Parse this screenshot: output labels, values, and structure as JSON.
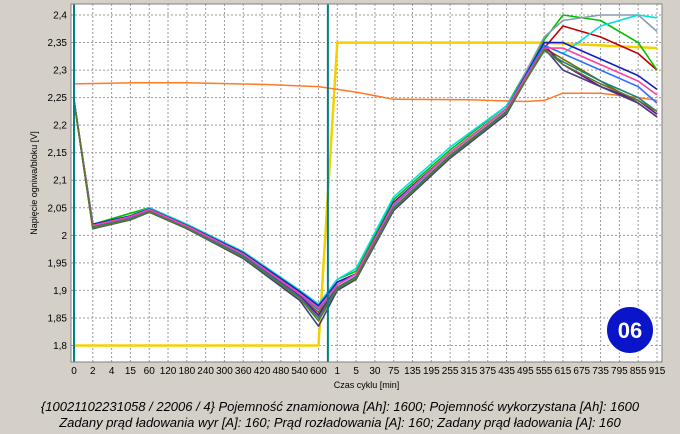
{
  "chart_data": {
    "type": "line",
    "title": "",
    "ylabel": "Napięcie ogniwa/bloku [V]",
    "xlabel": "Czas cyklu [min]",
    "ylim": [
      1.77,
      2.42
    ],
    "yticks": [
      "1,8",
      "1,85",
      "1,9",
      "1,95",
      "2",
      "2,05",
      "2,1",
      "2,15",
      "2,2",
      "2,25",
      "2,3",
      "2,35",
      "2,4"
    ],
    "xticks": [
      "0",
      "2",
      "4",
      "15",
      "60",
      "120",
      "180",
      "240",
      "300",
      "360",
      "420",
      "480",
      "540",
      "600",
      "1",
      "5",
      "30",
      "75",
      "135",
      "195",
      "255",
      "315",
      "375",
      "435",
      "495",
      "555",
      "615",
      "675",
      "735",
      "795",
      "855",
      "915"
    ],
    "grid": true,
    "phases": [
      {
        "name": "discharge",
        "x_range": [
          "0",
          "600"
        ]
      },
      {
        "name": "charge",
        "x_range": [
          "1",
          "915"
        ]
      }
    ],
    "series": [
      {
        "role": "charge-current-setpoint",
        "color": "#f5d000",
        "x": [
          "0",
          "600",
          "1",
          "555",
          "915"
        ],
        "y": [
          1.8,
          1.8,
          2.35,
          2.35,
          2.34
        ]
      },
      {
        "role": "reference-block",
        "color": "#ff7a2a",
        "x": [
          "0",
          "15",
          "180",
          "420",
          "600",
          "5",
          "75",
          "315",
          "495",
          "555",
          "615",
          "735",
          "855",
          "915"
        ],
        "y": [
          2.275,
          2.277,
          2.277,
          2.274,
          2.27,
          2.26,
          2.247,
          2.246,
          2.243,
          2.245,
          2.258,
          2.258,
          2.25,
          2.245
        ]
      },
      {
        "role": "cell",
        "color": "#c00000",
        "x": [
          "0",
          "2",
          "15",
          "60",
          "180",
          "360",
          "540",
          "600",
          "1",
          "5",
          "75",
          "255",
          "435",
          "555",
          "615",
          "735",
          "855",
          "915"
        ],
        "y": [
          2.245,
          2.02,
          2.035,
          2.05,
          2.02,
          1.97,
          1.9,
          1.875,
          1.915,
          1.93,
          2.06,
          2.15,
          2.23,
          2.34,
          2.38,
          2.36,
          2.33,
          2.3
        ]
      },
      {
        "role": "cell",
        "color": "#00c000",
        "x": [
          "0",
          "2",
          "15",
          "60",
          "180",
          "360",
          "540",
          "600",
          "1",
          "5",
          "75",
          "255",
          "435",
          "555",
          "615",
          "735",
          "855",
          "915"
        ],
        "y": [
          2.245,
          2.02,
          2.04,
          2.05,
          2.02,
          1.97,
          1.9,
          1.87,
          1.92,
          1.935,
          2.065,
          2.155,
          2.235,
          2.355,
          2.4,
          2.39,
          2.35,
          2.3
        ]
      },
      {
        "role": "cell",
        "color": "#8a9ab0",
        "x": [
          "0",
          "2",
          "15",
          "60",
          "180",
          "360",
          "540",
          "600",
          "1",
          "5",
          "75",
          "255",
          "435",
          "555",
          "615",
          "735",
          "855",
          "915"
        ],
        "y": [
          2.245,
          2.015,
          2.03,
          2.045,
          2.015,
          1.965,
          1.895,
          1.87,
          1.91,
          1.93,
          2.055,
          2.15,
          2.23,
          2.36,
          2.39,
          2.4,
          2.4,
          2.37
        ]
      },
      {
        "role": "cell",
        "color": "#00e0e0",
        "x": [
          "0",
          "2",
          "15",
          "60",
          "180",
          "360",
          "540",
          "600",
          "1",
          "5",
          "75",
          "255",
          "435",
          "555",
          "615",
          "735",
          "855",
          "915"
        ],
        "y": [
          2.245,
          2.02,
          2.035,
          2.05,
          2.02,
          1.97,
          1.9,
          1.875,
          1.92,
          1.94,
          2.07,
          2.16,
          2.235,
          2.345,
          2.33,
          2.38,
          2.4,
          2.395
        ]
      },
      {
        "role": "cell",
        "color": "#1020c0",
        "x": [
          "0",
          "2",
          "15",
          "60",
          "180",
          "360",
          "540",
          "600",
          "1",
          "5",
          "75",
          "255",
          "435",
          "555",
          "615",
          "735",
          "855",
          "915"
        ],
        "y": [
          2.245,
          2.02,
          2.035,
          2.048,
          2.018,
          1.968,
          1.898,
          1.872,
          1.915,
          1.93,
          2.06,
          2.15,
          2.23,
          2.35,
          2.35,
          2.32,
          2.29,
          2.265
        ]
      },
      {
        "role": "cell",
        "color": "#7a6a00",
        "x": [
          "0",
          "2",
          "15",
          "60",
          "180",
          "360",
          "540",
          "600",
          "1",
          "5",
          "75",
          "255",
          "435",
          "555",
          "615",
          "735",
          "855",
          "915"
        ],
        "y": [
          2.245,
          2.015,
          2.03,
          2.044,
          2.014,
          1.962,
          1.89,
          1.86,
          1.905,
          1.925,
          2.05,
          2.145,
          2.225,
          2.34,
          2.32,
          2.28,
          2.24,
          2.215
        ]
      },
      {
        "role": "cell",
        "color": "#8000a0",
        "x": [
          "0",
          "2",
          "15",
          "60",
          "180",
          "360",
          "540",
          "600",
          "1",
          "5",
          "75",
          "255",
          "435",
          "555",
          "615",
          "735",
          "855",
          "915"
        ],
        "y": [
          2.245,
          2.015,
          2.03,
          2.045,
          2.015,
          1.963,
          1.89,
          1.855,
          1.905,
          1.925,
          2.05,
          2.145,
          2.225,
          2.345,
          2.31,
          2.27,
          2.245,
          2.22
        ]
      },
      {
        "role": "cell",
        "color": "#208080",
        "x": [
          "0",
          "2",
          "15",
          "60",
          "180",
          "360",
          "540",
          "600",
          "1",
          "5",
          "75",
          "255",
          "435",
          "555",
          "615",
          "735",
          "855",
          "915"
        ],
        "y": [
          2.245,
          2.015,
          2.03,
          2.044,
          2.014,
          1.962,
          1.888,
          1.85,
          1.905,
          1.925,
          2.05,
          2.145,
          2.225,
          2.335,
          2.315,
          2.28,
          2.25,
          2.225
        ]
      },
      {
        "role": "cell",
        "color": "#404080",
        "x": [
          "0",
          "2",
          "15",
          "60",
          "180",
          "360",
          "540",
          "600",
          "1",
          "5",
          "75",
          "255",
          "435",
          "555",
          "615",
          "735",
          "855",
          "915"
        ],
        "y": [
          2.245,
          2.012,
          2.028,
          2.042,
          2.012,
          1.958,
          1.882,
          1.835,
          1.9,
          1.92,
          2.045,
          2.14,
          2.22,
          2.34,
          2.3,
          2.27,
          2.24,
          2.215
        ]
      },
      {
        "role": "cell",
        "color": "#3070ff",
        "x": [
          "0",
          "2",
          "15",
          "60",
          "180",
          "360",
          "540",
          "600",
          "1",
          "5",
          "75",
          "255",
          "435",
          "555",
          "615",
          "735",
          "855",
          "915"
        ],
        "y": [
          2.245,
          2.018,
          2.033,
          2.046,
          2.016,
          1.965,
          1.893,
          1.865,
          1.91,
          1.93,
          2.055,
          2.15,
          2.23,
          2.345,
          2.33,
          2.3,
          2.27,
          2.24
        ]
      },
      {
        "role": "cell",
        "color": "#ff40a0",
        "x": [
          "0",
          "2",
          "15",
          "60",
          "180",
          "360",
          "540",
          "600",
          "1",
          "5",
          "75",
          "255",
          "435",
          "555",
          "615",
          "735",
          "855",
          "915"
        ],
        "y": [
          2.245,
          2.018,
          2.034,
          2.047,
          2.017,
          1.966,
          1.894,
          1.868,
          1.91,
          1.93,
          2.057,
          2.15,
          2.23,
          2.34,
          2.34,
          2.31,
          2.28,
          2.255
        ]
      },
      {
        "role": "cell",
        "color": "#5a7a2a",
        "x": [
          "0",
          "2",
          "15",
          "60",
          "180",
          "360",
          "540",
          "600",
          "1",
          "5",
          "75",
          "255",
          "435",
          "555",
          "615",
          "735",
          "855",
          "915"
        ],
        "y": [
          2.245,
          2.013,
          2.029,
          2.043,
          2.013,
          1.96,
          1.886,
          1.845,
          1.903,
          1.922,
          2.048,
          2.143,
          2.223,
          2.338,
          2.31,
          2.275,
          2.245,
          2.225
        ]
      }
    ]
  },
  "badge": {
    "label": "06",
    "color": "#0a14c8"
  },
  "caption": {
    "line1": "{10021102231058 / 22006 / 4} Pojemność znamionowa [Ah]: 1600;  Pojemność wykorzystana [Ah]: 1600",
    "line2": "Zadany prąd ładowania wyr [A]: 160;  Prąd rozładowania [A]: 160;  Zadany prąd ładowania [A]: 160"
  },
  "colors": {
    "plot_bg": "#ffffff",
    "divider": "#008080",
    "window_bg": "#d4d0c8"
  }
}
